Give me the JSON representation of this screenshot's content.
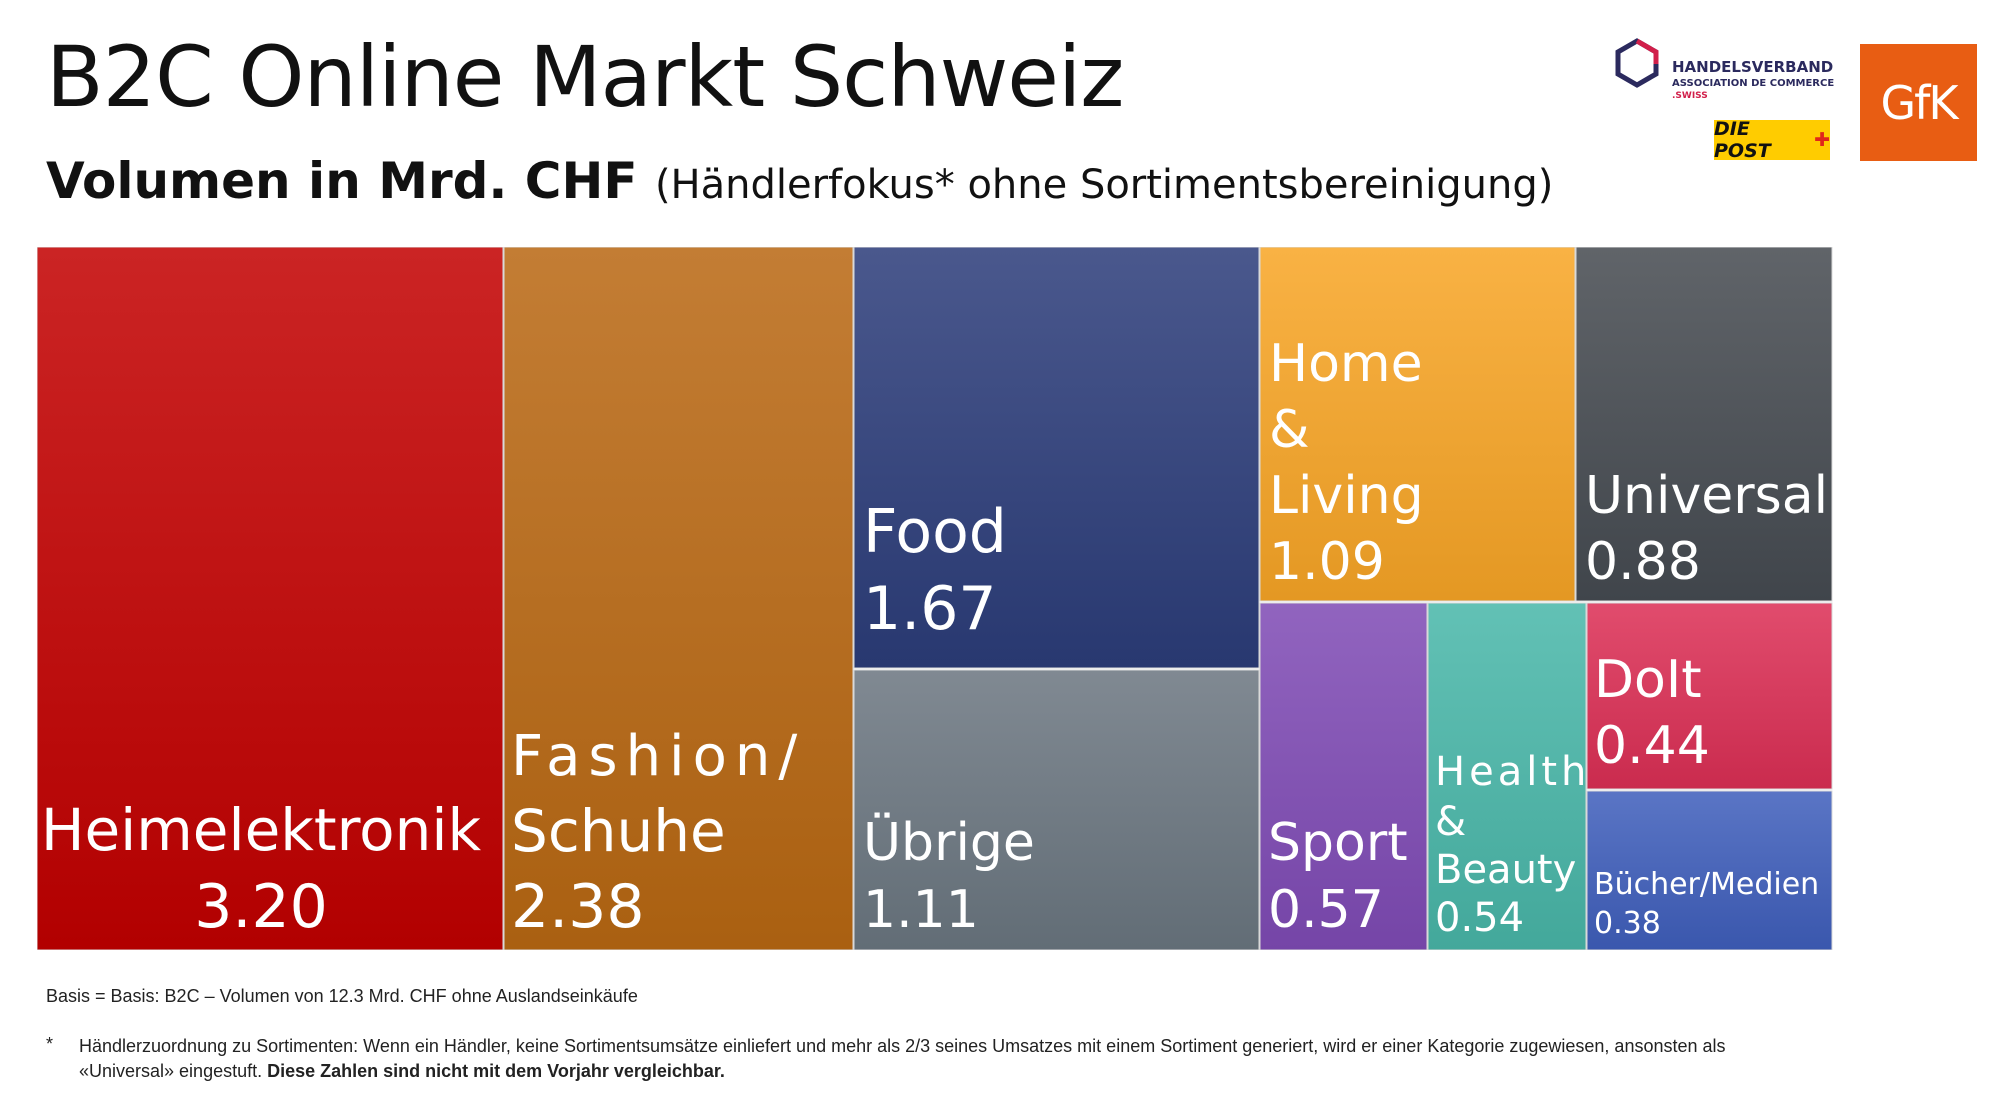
{
  "title": "B2C Online Markt Schweiz",
  "subtitle_main": "Volumen in Mrd. CHF",
  "subtitle_rest": "(Händlerfokus* ohne Sortimentsbereinigung)",
  "logos": {
    "handelsverband": [
      "HANDELSVERBAND",
      "ASSOCIATION DE COMMERCE",
      ".SWISS"
    ],
    "post": "DIE POST",
    "gfk": "GfK"
  },
  "chart_data": {
    "type": "treemap",
    "title": "Volumen in Mrd. CHF",
    "unit": "Mrd. CHF",
    "items": [
      {
        "name": "Heimelektronik",
        "label": "Heimelektronik",
        "value": 3.2,
        "color": "#c20000"
      },
      {
        "name": "Fashion/Schuhe",
        "label": "Fashion/ Schuhe",
        "value": 2.38,
        "color": "#b96813"
      },
      {
        "name": "Food",
        "label": "Food",
        "value": 1.67,
        "color": "#2c3d7a"
      },
      {
        "name": "Übrige",
        "label": "Übrige",
        "value": 1.11,
        "color": "#6b7680"
      },
      {
        "name": "Home & Living",
        "label": "Home & Living",
        "value": 1.09,
        "color": "#f8a526"
      },
      {
        "name": "Universal",
        "label": "Universal",
        "value": 0.88,
        "color": "#464b51"
      },
      {
        "name": "Sport",
        "label": "Sport",
        "value": 0.57,
        "color": "#7f4bb5"
      },
      {
        "name": "Health & Beauty",
        "label": "Health & Beauty",
        "value": 0.54,
        "color": "#49b7a9"
      },
      {
        "name": "DoIt",
        "label": "DoIt",
        "value": 0.44,
        "color": "#dc2f55"
      },
      {
        "name": "Bücher/Medien",
        "label": "Bücher/Medien",
        "value": 0.38,
        "color": "#3f5fbc"
      }
    ]
  },
  "notes": {
    "basis": "Basis = Basis: B2C – Volumen von 12.3 Mrd. CHF ohne Auslandseinkäufe",
    "footnote_marker": "*",
    "footnote_text": "Händlerzuordnung zu Sortimenten: Wenn ein Händler, keine Sortimentsumsätze einliefert und  mehr als 2/3 seines Umsatzes mit einem Sortiment generiert, wird er einer Kategorie zugewiesen, ansonsten  als «Universal» eingestuft.",
    "footnote_bold": "Diese Zahlen sind nicht mit dem Vorjahr vergleichbar."
  }
}
